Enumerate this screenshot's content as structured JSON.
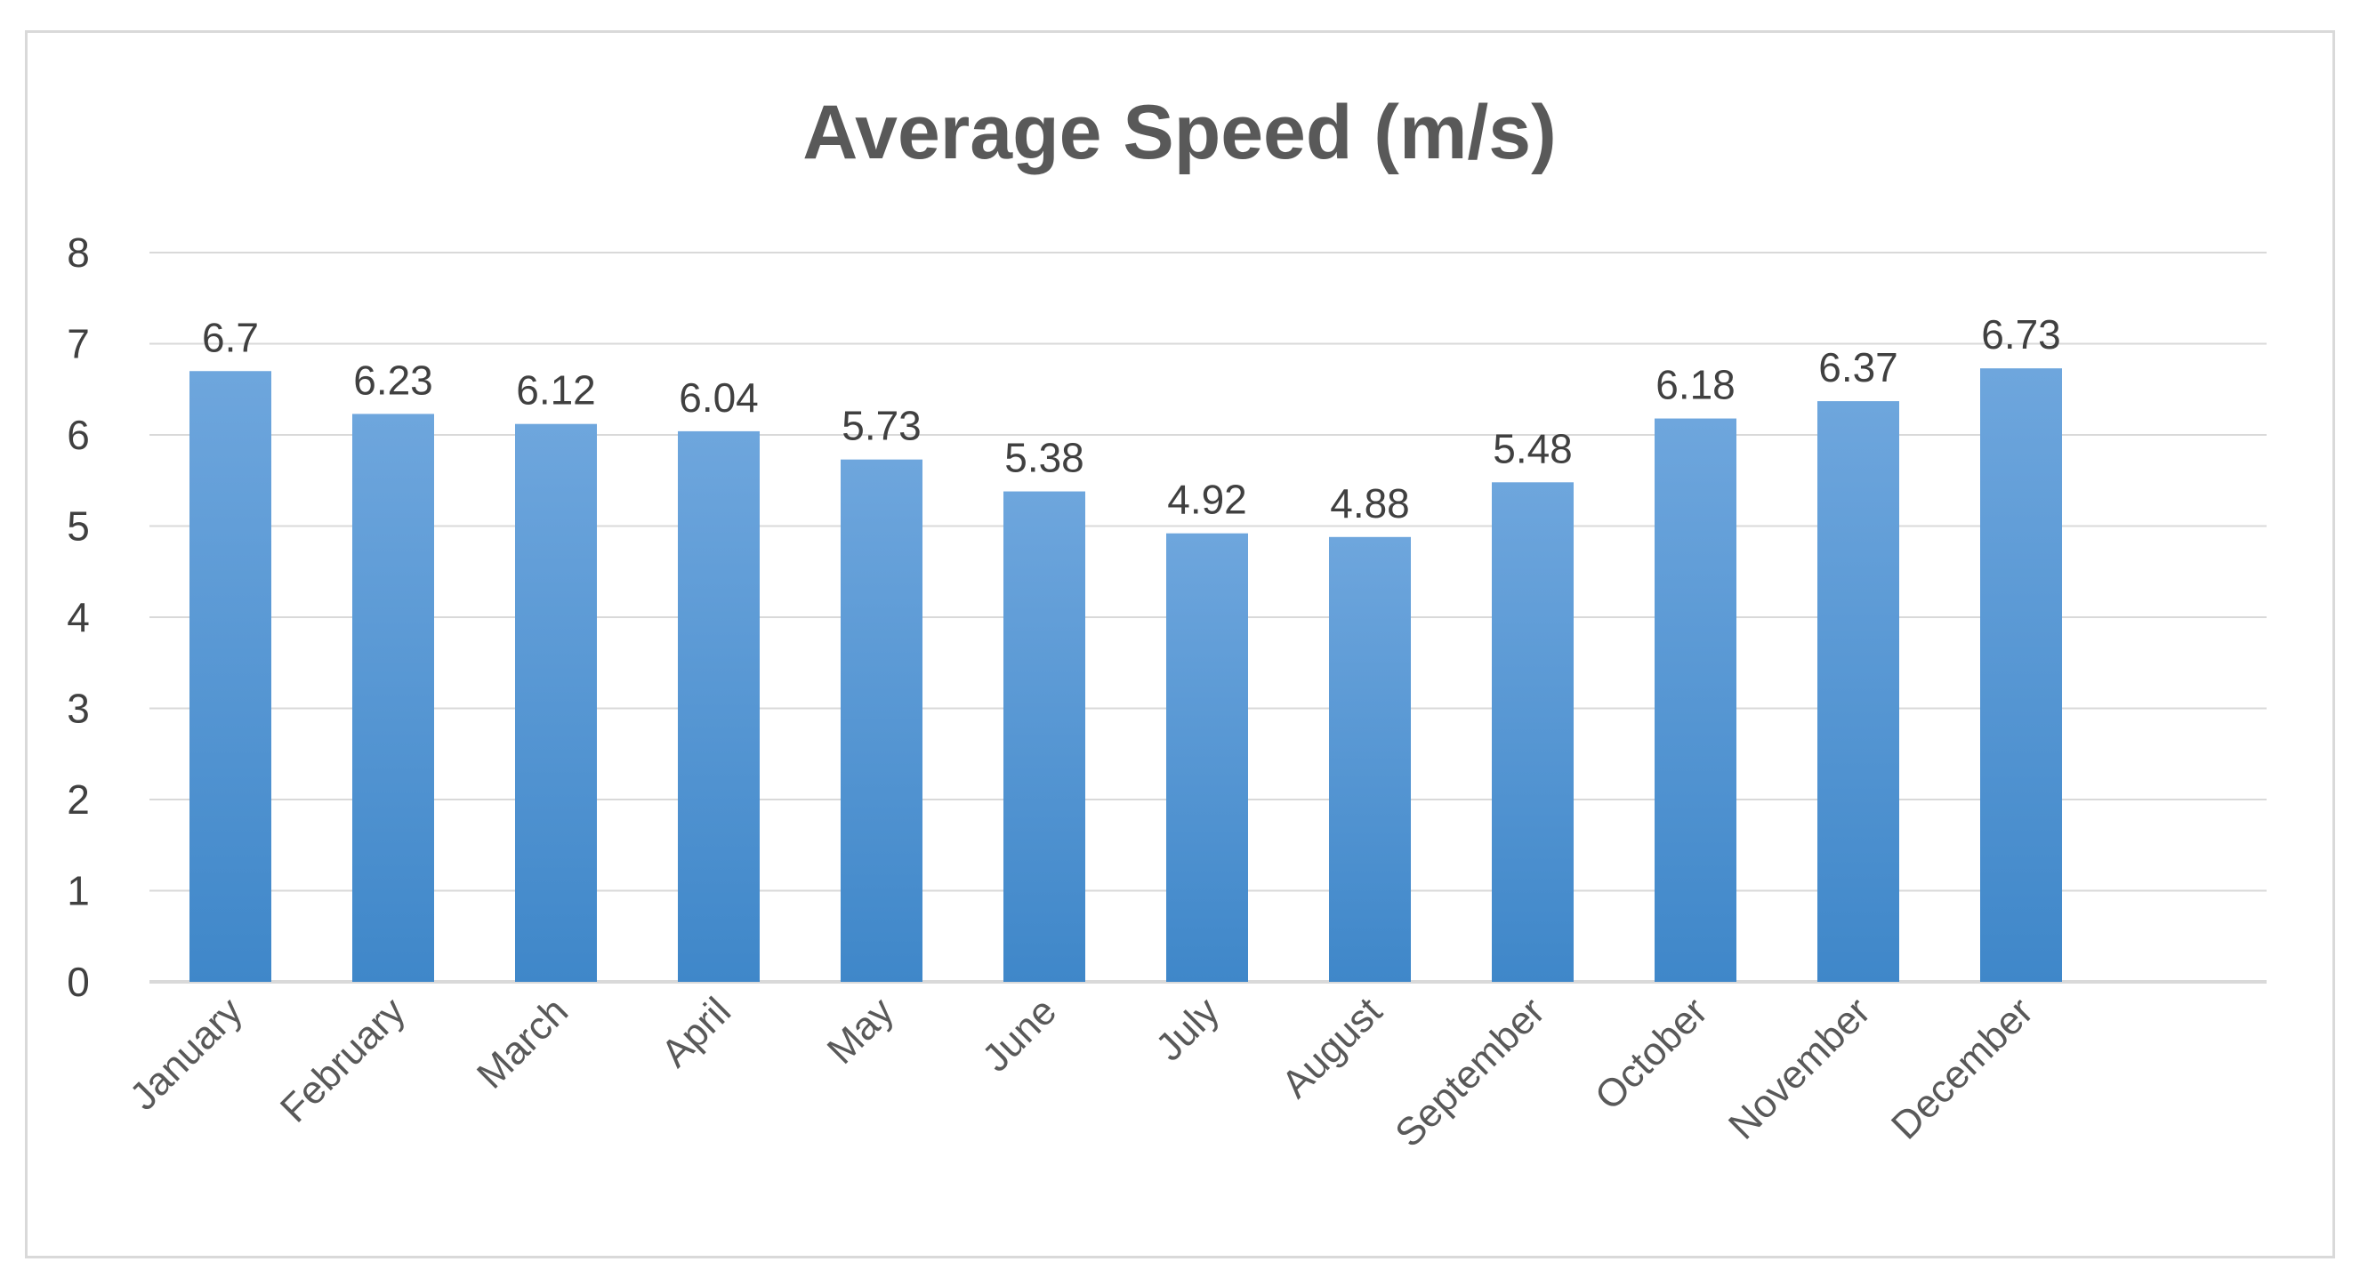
{
  "chart_data": {
    "type": "bar",
    "title": "Average Speed (m/s)",
    "xlabel": "",
    "ylabel": "",
    "categories": [
      "January",
      "February",
      "March",
      "April",
      "May",
      "June",
      "July",
      "August",
      "September",
      "October",
      "November",
      "December"
    ],
    "values": [
      6.7,
      6.23,
      6.12,
      6.04,
      5.73,
      5.38,
      4.92,
      4.88,
      5.48,
      6.18,
      6.37,
      6.73
    ],
    "value_labels": [
      "6.7",
      "6.23",
      "6.12",
      "6.04",
      "5.73",
      "5.38",
      "4.92",
      "4.88",
      "5.48",
      "6.18",
      "6.37",
      "6.73"
    ],
    "ylim": [
      0,
      8
    ],
    "yticks": [
      "0",
      "1",
      "2",
      "3",
      "4",
      "5",
      "6",
      "7",
      "8"
    ],
    "grid": true,
    "legend": "none",
    "bar_color_top": "#6ea6dd",
    "bar_color_bottom": "#3f87c9",
    "gridline_color": "#d9d9d9",
    "title_color": "#595959"
  }
}
